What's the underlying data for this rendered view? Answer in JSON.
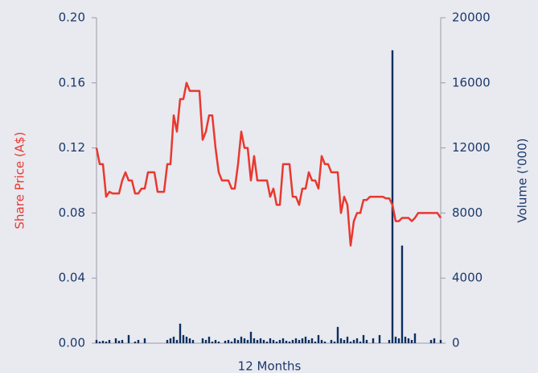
{
  "chart_data": {
    "type": "line_bar",
    "xlabel": "12 Months",
    "ylabel": "Share Price (A$)",
    "y2label": "Volume ('000)",
    "ylim": [
      0,
      0.2
    ],
    "yticks": [
      {
        "value": 0,
        "label": "0.00"
      },
      0.04,
      0.08,
      0.12,
      0.16,
      {
        "value": 0.2,
        "label": "0.20"
      }
    ],
    "y2lim": [
      0,
      20000
    ],
    "y2ticks": [
      0,
      4000,
      8000,
      12000,
      16000,
      20000
    ],
    "series": [
      {
        "type": "line",
        "color": "#e8392e",
        "values": [
          0.12,
          0.11,
          0.11,
          0.09,
          0.093,
          0.092,
          0.092,
          0.092,
          0.1,
          0.105,
          0.1,
          0.1,
          0.092,
          0.092,
          0.095,
          0.095,
          0.105,
          0.105,
          0.105,
          0.093,
          0.093,
          0.093,
          0.11,
          0.11,
          0.14,
          0.13,
          0.15,
          0.15,
          0.16,
          0.155,
          0.155,
          0.155,
          0.155,
          0.125,
          0.13,
          0.14,
          0.14,
          0.12,
          0.105,
          0.1,
          0.1,
          0.1,
          0.095,
          0.095,
          0.11,
          0.13,
          0.12,
          0.12,
          0.1,
          0.115,
          0.1,
          0.1,
          0.1,
          0.1,
          0.09,
          0.095,
          0.085,
          0.085,
          0.11,
          0.11,
          0.11,
          0.09,
          0.09,
          0.085,
          0.095,
          0.095,
          0.105,
          0.1,
          0.1,
          0.095,
          0.115,
          0.11,
          0.11,
          0.105,
          0.105,
          0.105,
          0.08,
          0.09,
          0.085,
          0.06,
          0.075,
          0.08,
          0.08,
          0.088,
          0.088,
          0.09,
          0.09,
          0.09,
          0.09,
          0.09,
          0.089,
          0.089,
          0.085,
          0.075,
          0.075,
          0.077,
          0.077,
          0.077,
          0.075,
          0.077,
          0.08,
          0.08,
          0.08,
          0.08,
          0.08,
          0.08,
          0.08,
          0.077
        ]
      },
      {
        "type": "bar",
        "axis": "y2",
        "color": "#0b2f5e",
        "values": [
          200,
          100,
          150,
          100,
          200,
          0,
          300,
          150,
          200,
          0,
          500,
          0,
          100,
          200,
          0,
          300,
          0,
          0,
          0,
          0,
          0,
          0,
          200,
          300,
          400,
          200,
          1200,
          500,
          400,
          300,
          200,
          0,
          0,
          300,
          200,
          400,
          100,
          200,
          100,
          0,
          150,
          200,
          100,
          300,
          200,
          400,
          300,
          200,
          700,
          300,
          200,
          300,
          200,
          100,
          300,
          200,
          100,
          200,
          300,
          150,
          100,
          200,
          300,
          200,
          300,
          400,
          200,
          300,
          100,
          500,
          200,
          100,
          0,
          200,
          100,
          1000,
          300,
          200,
          400,
          100,
          200,
          300,
          100,
          500,
          200,
          0,
          300,
          0,
          500,
          0,
          0,
          200,
          18000,
          400,
          300,
          6000,
          400,
          300,
          200,
          600,
          0,
          0,
          0,
          0,
          200,
          300,
          0,
          200
        ]
      }
    ]
  }
}
